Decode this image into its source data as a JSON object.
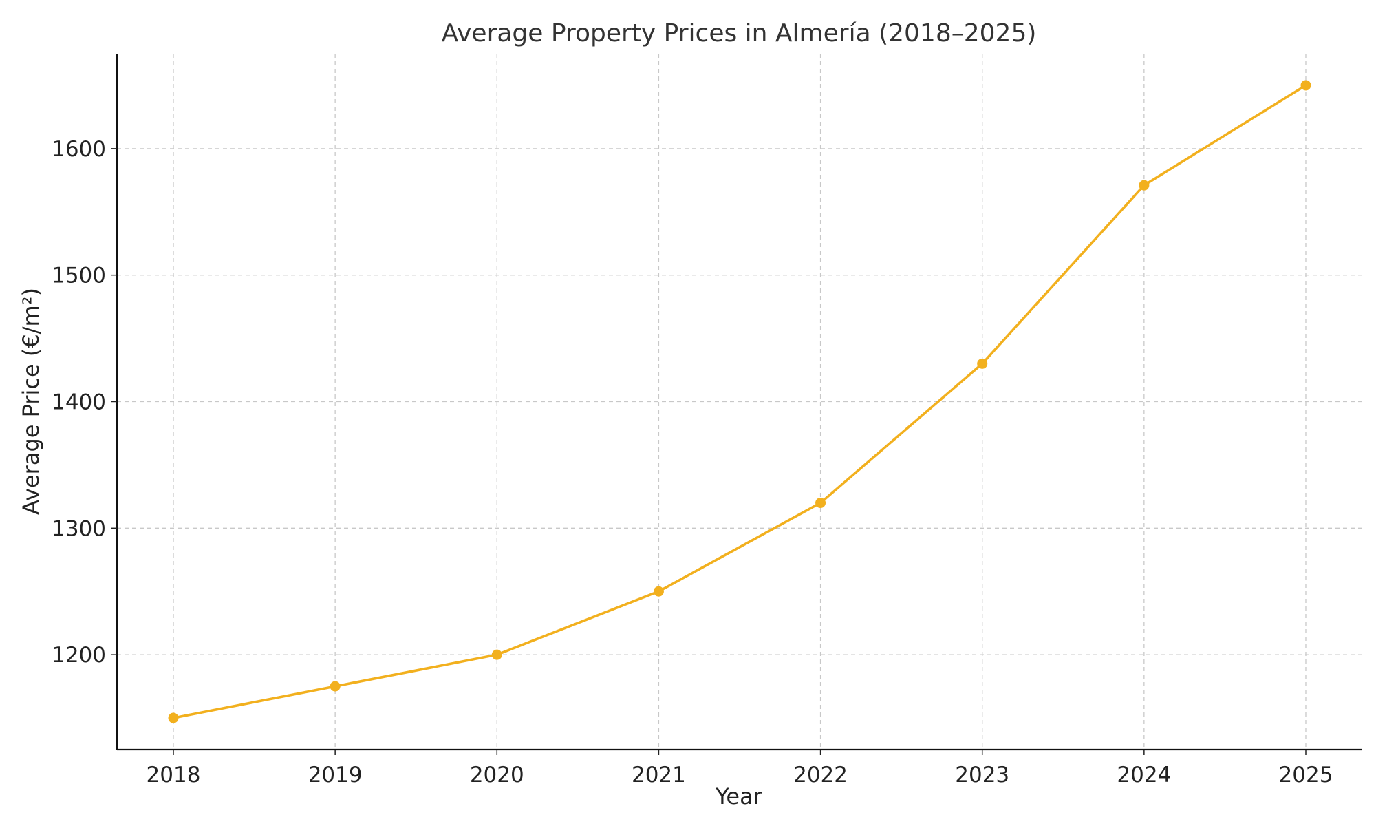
{
  "chart_data": {
    "type": "line",
    "title": "Average Property Prices in Almería (2018–2025)",
    "xlabel": "Year",
    "ylabel": "Average Price (€/m²)",
    "x": [
      "2018",
      "2019",
      "2020",
      "2021",
      "2022",
      "2023",
      "2024",
      "2025"
    ],
    "series": [
      {
        "values": [
          1150,
          1175,
          1200,
          1250,
          1320,
          1430,
          1571,
          1650
        ],
        "color": "#f2b01e",
        "marker": "circle"
      }
    ],
    "yticks": [
      "1200",
      "1300",
      "1400",
      "1500",
      "1600"
    ],
    "ylim": [
      1125,
      1675
    ],
    "grid": true,
    "legend": "none"
  }
}
